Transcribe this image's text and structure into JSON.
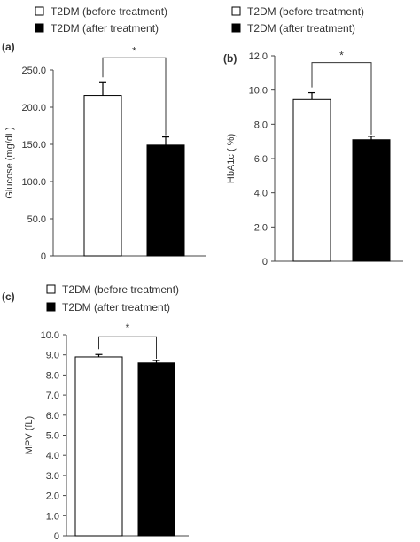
{
  "chart_data": [
    {
      "panel_label": "(a)",
      "type": "bar",
      "ylabel": "Glucose (mg/dL)",
      "ylim": [
        0,
        250
      ],
      "yticks": [
        "0",
        "50.0",
        "100.0",
        "150.0",
        "200.0",
        "250.0"
      ],
      "ytick_values": [
        0,
        50,
        100,
        150,
        200,
        250
      ],
      "legend": [
        "T2DM (before treatment)",
        "T2DM (after treatment)"
      ],
      "legend_placement": "top",
      "series": [
        {
          "name": "T2DM (before treatment)",
          "value": 216,
          "error": 17,
          "fill": "#ffffff"
        },
        {
          "name": "T2DM (after treatment)",
          "value": 149,
          "error": 11,
          "fill": "#000000"
        }
      ],
      "significance": "*"
    },
    {
      "panel_label": "(b)",
      "type": "bar",
      "ylabel": "HbA1c ( %)",
      "ylim": [
        0,
        12
      ],
      "yticks": [
        "0",
        "2.0",
        "4.0",
        "6.0",
        "8.0",
        "10.0",
        "12.0"
      ],
      "ytick_values": [
        0,
        2,
        4,
        6,
        8,
        10,
        12
      ],
      "legend": [
        "T2DM (before treatment)",
        "T2DM (after treatment)"
      ],
      "legend_placement": "top",
      "series": [
        {
          "name": "T2DM (before treatment)",
          "value": 9.45,
          "error": 0.4,
          "fill": "#ffffff"
        },
        {
          "name": "T2DM (after treatment)",
          "value": 7.1,
          "error": 0.2,
          "fill": "#000000"
        }
      ],
      "significance": "*"
    },
    {
      "panel_label": "(c)",
      "type": "bar",
      "ylabel": "MPV (fL)",
      "ylim": [
        0,
        10
      ],
      "yticks": [
        "0",
        "1.0",
        "2.0",
        "3.0",
        "4.0",
        "5.0",
        "6.0",
        "7.0",
        "8.0",
        "9.0",
        "10.0"
      ],
      "ytick_values": [
        0,
        1,
        2,
        3,
        4,
        5,
        6,
        7,
        8,
        9,
        10
      ],
      "legend": [
        "T2DM (before treatment)",
        "T2DM (after treatment)"
      ],
      "legend_placement": "top",
      "series": [
        {
          "name": "T2DM (before treatment)",
          "value": 8.9,
          "error": 0.12,
          "fill": "#ffffff"
        },
        {
          "name": "T2DM (after treatment)",
          "value": 8.6,
          "error": 0.12,
          "fill": "#000000"
        }
      ],
      "significance": "*"
    }
  ]
}
